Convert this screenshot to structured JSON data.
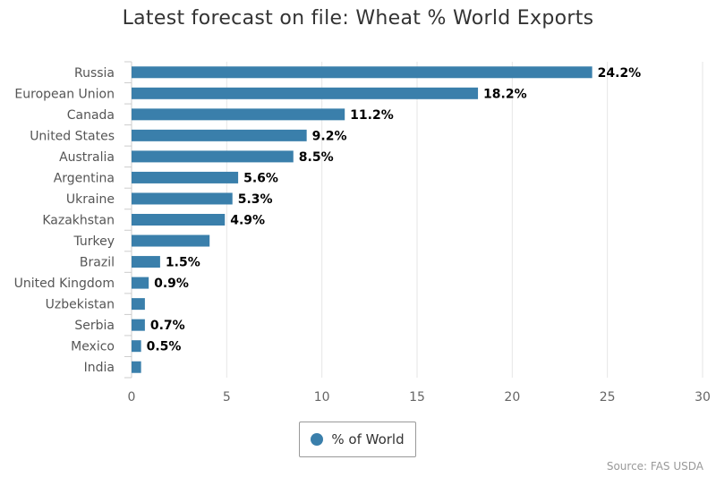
{
  "chart_data": {
    "type": "bar",
    "orientation": "horizontal",
    "title": "Latest forecast on file: Wheat % World Exports",
    "categories": [
      "Russia",
      "European Union",
      "Canada",
      "United States",
      "Australia",
      "Argentina",
      "Ukraine",
      "Kazakhstan",
      "Turkey",
      "Brazil",
      "United Kingdom",
      "Uzbekistan",
      "Serbia",
      "Mexico",
      "India"
    ],
    "series": [
      {
        "name": "% of World",
        "values": [
          24.2,
          18.2,
          11.2,
          9.2,
          8.5,
          5.6,
          5.3,
          4.9,
          4.1,
          1.5,
          0.9,
          0.7,
          0.7,
          0.5,
          0.5
        ],
        "data_labels": [
          "24.2%",
          "18.2%",
          "11.2%",
          "9.2%",
          "8.5%",
          "5.6%",
          "5.3%",
          "4.9%",
          "",
          "1.5%",
          "0.9%",
          "",
          "0.7%",
          "0.5%",
          ""
        ]
      }
    ],
    "xlim": [
      0,
      30
    ],
    "xticks": [
      "0",
      "5",
      "10",
      "15",
      "20",
      "25",
      "30"
    ],
    "xtick_values": [
      0,
      5,
      10,
      15,
      20,
      25,
      30
    ],
    "grid": true,
    "legend_position": "bottom-center",
    "bar_color": "#3a7fab",
    "source": "Source: FAS USDA"
  }
}
